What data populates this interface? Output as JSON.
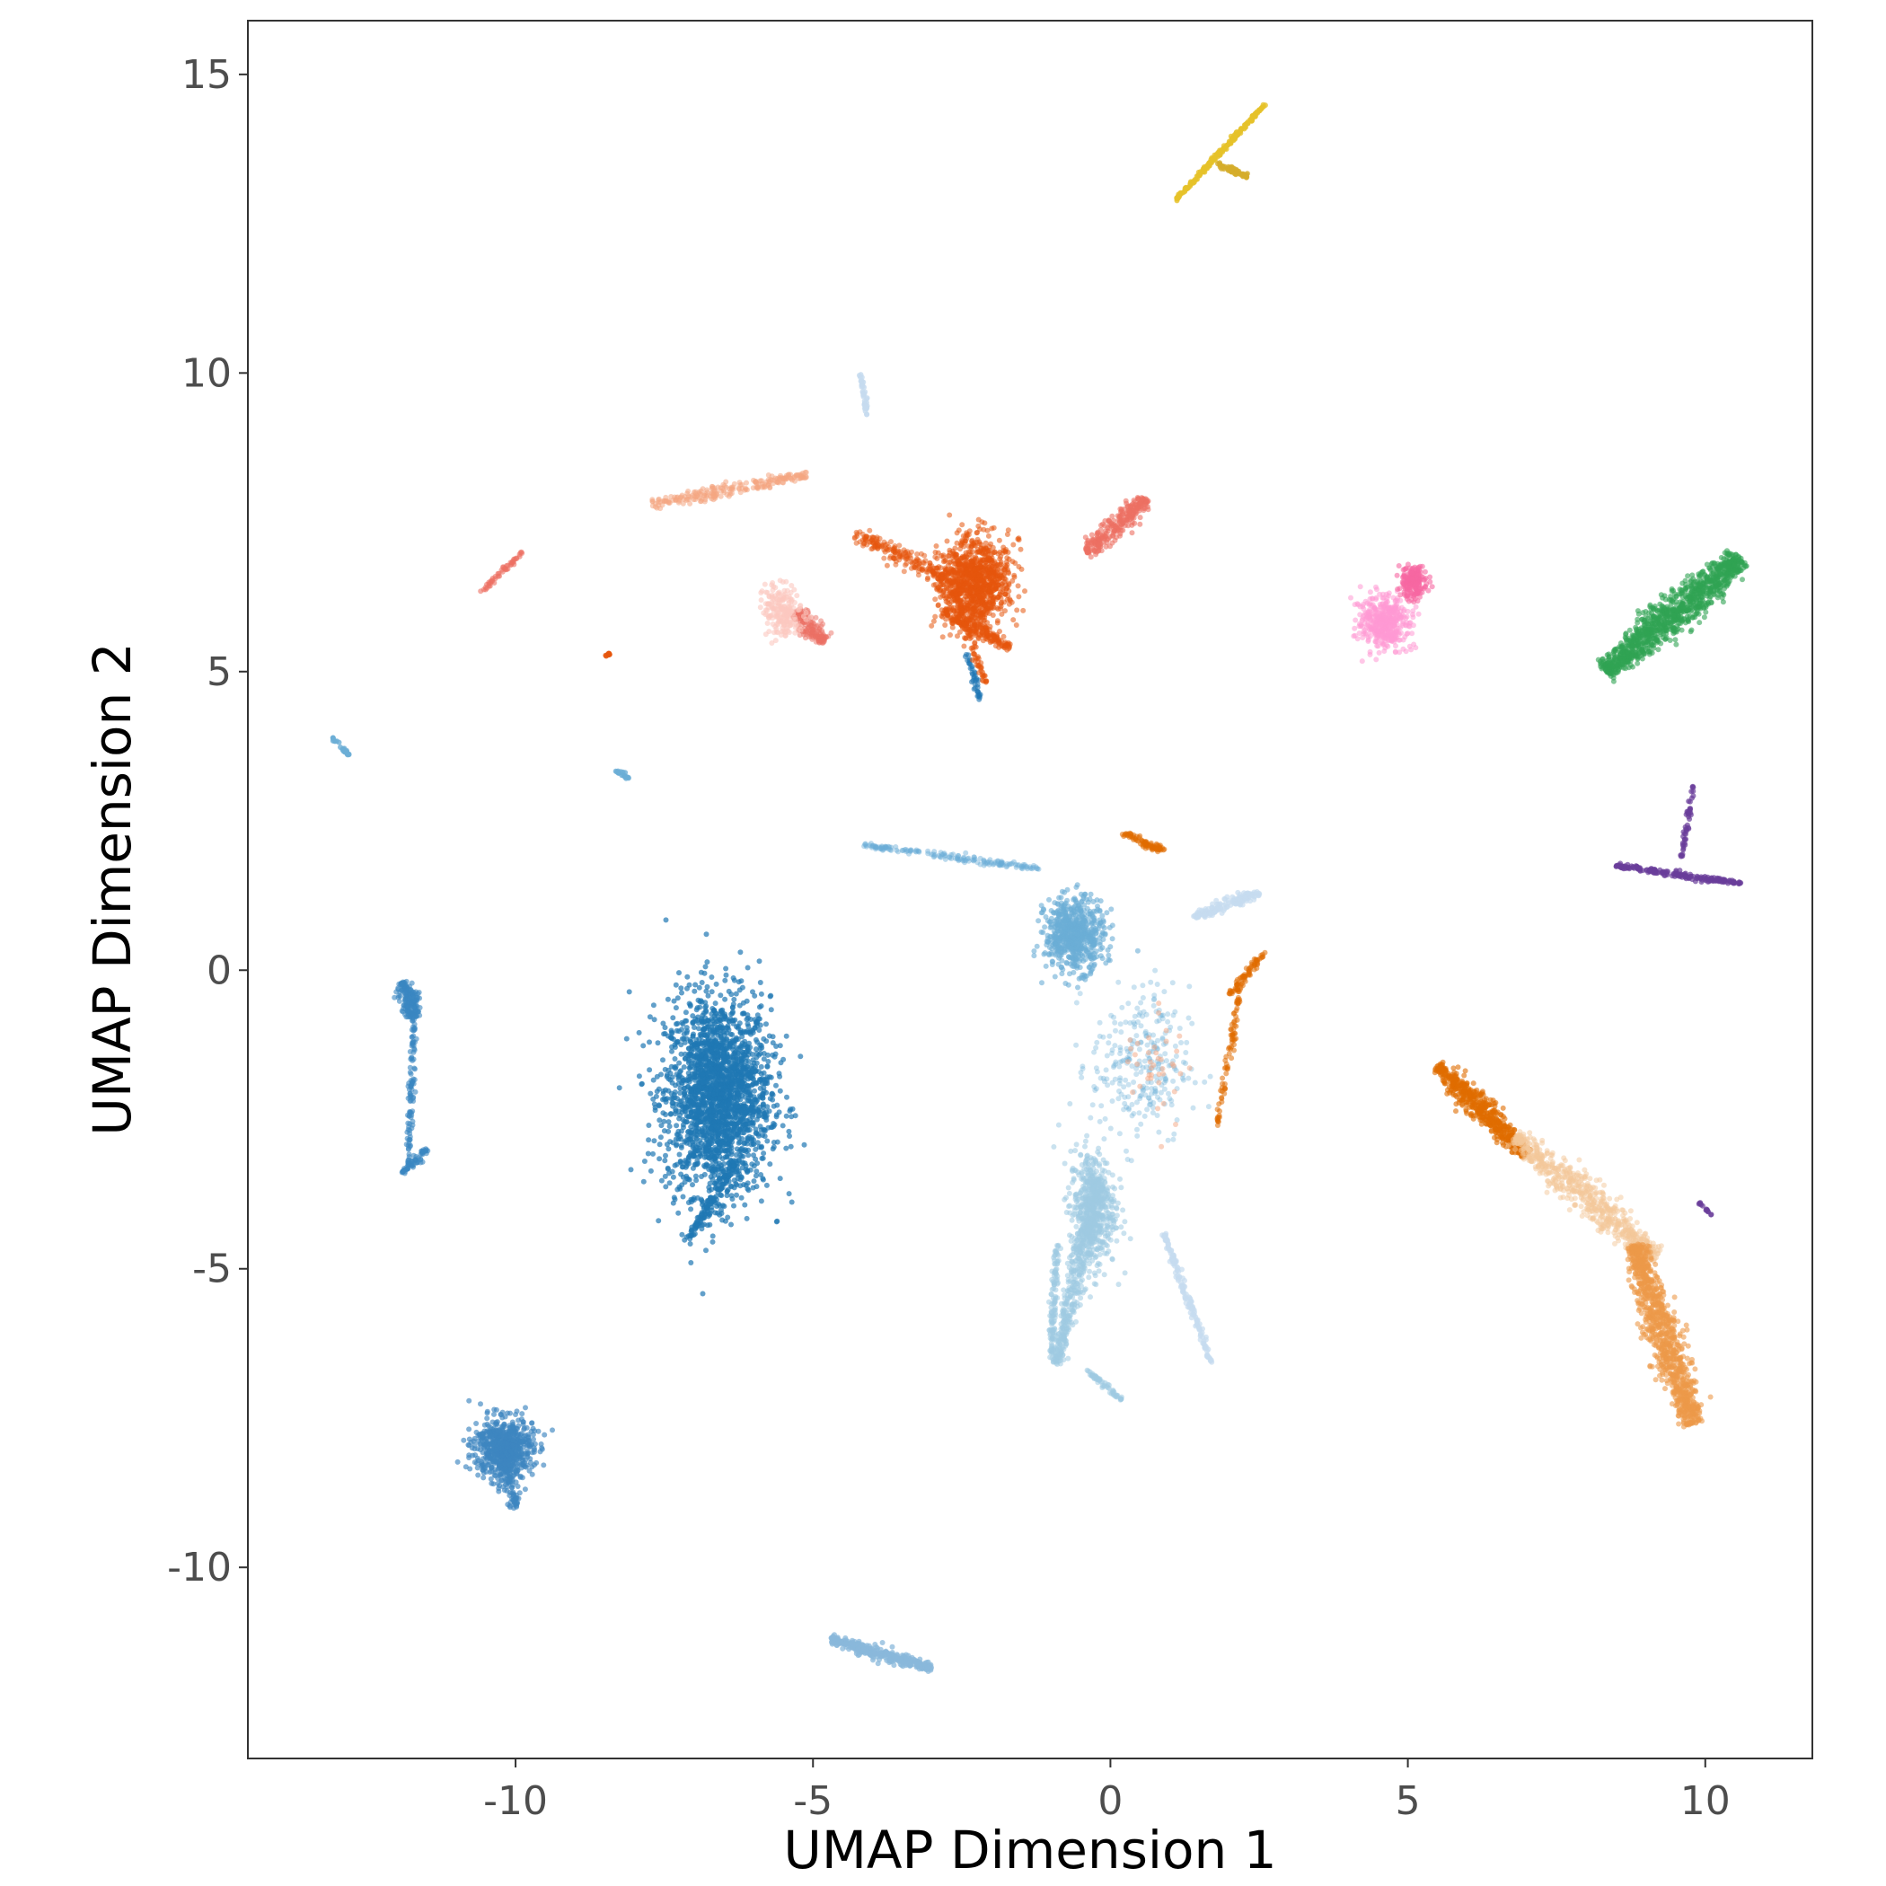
{
  "chart_data": {
    "type": "scatter",
    "title": "",
    "xlabel": "UMAP Dimension 1",
    "ylabel": "UMAP Dimension 2",
    "xlim": [
      -14.5,
      11.8
    ],
    "ylim": [
      -13.2,
      15.9
    ],
    "xticks": [
      -10,
      -5,
      0,
      5,
      10
    ],
    "yticks": [
      -10,
      -5,
      0,
      5,
      10,
      15
    ],
    "xtick_labels": [
      "-10",
      "-5",
      "0",
      "5",
      "10"
    ],
    "ytick_labels": [
      "-10",
      "-5",
      "0",
      "5",
      "10",
      "15"
    ],
    "grid": false,
    "legend": "none",
    "clusters": [
      {
        "color": "#1f77b4",
        "alpha": 0.7,
        "kind": "blob",
        "center": [
          -6.6,
          -2.1
        ],
        "spread": [
          0.8,
          1.5
        ],
        "count": 2200
      },
      {
        "color": "#1f77b4",
        "alpha": 0.7,
        "kind": "line",
        "from": [
          -6.3,
          -3.2
        ],
        "to": [
          -7.1,
          -4.5
        ],
        "width": 0.12,
        "count": 140
      },
      {
        "color": "#3a87c2",
        "alpha": 0.6,
        "kind": "line",
        "from": [
          -11.9,
          -0.2
        ],
        "to": [
          -11.7,
          -0.8
        ],
        "width": 0.2,
        "count": 180
      },
      {
        "color": "#3a87c2",
        "alpha": 0.6,
        "kind": "line",
        "from": [
          -11.7,
          -0.6
        ],
        "to": [
          -11.8,
          -3.3
        ],
        "width": 0.06,
        "count": 110
      },
      {
        "color": "#3a87c2",
        "alpha": 0.6,
        "kind": "line",
        "from": [
          -11.5,
          -3.0
        ],
        "to": [
          -11.9,
          -3.4
        ],
        "width": 0.08,
        "count": 60
      },
      {
        "color": "#3d85c0",
        "alpha": 0.65,
        "kind": "blob",
        "center": [
          -10.2,
          -8.0
        ],
        "spread": [
          0.45,
          0.45
        ],
        "count": 650
      },
      {
        "color": "#3d85c0",
        "alpha": 0.65,
        "kind": "line",
        "from": [
          -10.2,
          -8.2
        ],
        "to": [
          -10.0,
          -9.0
        ],
        "width": 0.15,
        "count": 90
      },
      {
        "color": "#6baed6",
        "alpha": 0.6,
        "kind": "blob",
        "center": [
          -0.6,
          0.6
        ],
        "spread": [
          0.45,
          0.55
        ],
        "count": 650
      },
      {
        "color": "#6baed6",
        "alpha": 0.45,
        "kind": "line",
        "from": [
          -4.2,
          2.1
        ],
        "to": [
          -1.2,
          1.7
        ],
        "width": 0.07,
        "count": 170
      },
      {
        "color": "#6baed6",
        "alpha": 0.35,
        "kind": "blob",
        "center": [
          0.5,
          -1.6
        ],
        "spread": [
          0.75,
          1.2
        ],
        "count": 280
      },
      {
        "color": "#9ecae1",
        "alpha": 0.55,
        "kind": "blob",
        "center": [
          -0.3,
          -4.0
        ],
        "spread": [
          0.35,
          0.9
        ],
        "count": 550
      },
      {
        "color": "#9ecae1",
        "alpha": 0.55,
        "kind": "line",
        "from": [
          -0.2,
          -3.5
        ],
        "to": [
          -0.9,
          -6.6
        ],
        "width": 0.18,
        "count": 420
      },
      {
        "color": "#9ecae1",
        "alpha": 0.55,
        "kind": "line",
        "from": [
          -0.9,
          -4.6
        ],
        "to": [
          -1.0,
          -6.5
        ],
        "width": 0.07,
        "count": 120
      },
      {
        "color": "#9ecae1",
        "alpha": 0.55,
        "kind": "line",
        "from": [
          -0.4,
          -6.7
        ],
        "to": [
          0.2,
          -7.2
        ],
        "width": 0.05,
        "count": 60
      },
      {
        "color": "#c6dbef",
        "alpha": 0.7,
        "kind": "line",
        "from": [
          0.9,
          -4.4
        ],
        "to": [
          1.7,
          -6.6
        ],
        "width": 0.07,
        "count": 160
      },
      {
        "color": "#c6dbef",
        "alpha": 0.7,
        "kind": "line",
        "from": [
          1.4,
          0.9
        ],
        "to": [
          2.5,
          1.3
        ],
        "width": 0.12,
        "count": 160
      },
      {
        "color": "#8ab8db",
        "alpha": 0.75,
        "kind": "line",
        "from": [
          -4.7,
          -11.2
        ],
        "to": [
          -3.0,
          -11.7
        ],
        "width": 0.12,
        "count": 320
      },
      {
        "color": "#c6dbef",
        "alpha": 0.8,
        "kind": "line",
        "from": [
          -4.2,
          10.0
        ],
        "to": [
          -4.1,
          9.3
        ],
        "width": 0.04,
        "count": 40
      },
      {
        "color": "#1f77b4",
        "alpha": 0.6,
        "kind": "line",
        "from": [
          -2.4,
          5.3
        ],
        "to": [
          -2.2,
          4.5
        ],
        "width": 0.06,
        "count": 40
      },
      {
        "color": "#6baed6",
        "alpha": 0.8,
        "kind": "line",
        "from": [
          -13.1,
          3.9
        ],
        "to": [
          -12.8,
          3.6
        ],
        "width": 0.04,
        "count": 25
      },
      {
        "color": "#6baed6",
        "alpha": 0.8,
        "kind": "line",
        "from": [
          -8.3,
          3.35
        ],
        "to": [
          -8.1,
          3.2
        ],
        "width": 0.04,
        "count": 20
      },
      {
        "color": "#e6550d",
        "alpha": 0.55,
        "kind": "blob",
        "center": [
          -2.3,
          6.5
        ],
        "spread": [
          0.55,
          0.65
        ],
        "count": 1100
      },
      {
        "color": "#e6550d",
        "alpha": 0.55,
        "kind": "line",
        "from": [
          -2.8,
          6.0
        ],
        "to": [
          -1.7,
          5.4
        ],
        "width": 0.15,
        "count": 160
      },
      {
        "color": "#e6550d",
        "alpha": 0.55,
        "kind": "line",
        "from": [
          -2.6,
          6.3
        ],
        "to": [
          -2.1,
          4.8
        ],
        "width": 0.08,
        "count": 80
      },
      {
        "color": "#e6550d",
        "alpha": 0.5,
        "kind": "line",
        "from": [
          -4.3,
          7.3
        ],
        "to": [
          -2.8,
          6.6
        ],
        "width": 0.18,
        "count": 180
      },
      {
        "color": "#ec7063",
        "alpha": 0.6,
        "kind": "line",
        "from": [
          -0.4,
          7.0
        ],
        "to": [
          0.6,
          7.9
        ],
        "width": 0.22,
        "count": 260
      },
      {
        "color": "#ec7063",
        "alpha": 0.5,
        "kind": "line",
        "from": [
          -5.3,
          6.0
        ],
        "to": [
          -4.8,
          5.5
        ],
        "width": 0.2,
        "count": 160
      },
      {
        "color": "#ec7063",
        "alpha": 0.6,
        "kind": "line",
        "from": [
          -10.6,
          6.3
        ],
        "to": [
          -9.9,
          7.0
        ],
        "width": 0.05,
        "count": 50
      },
      {
        "color": "#f4a582",
        "alpha": 0.55,
        "kind": "line",
        "from": [
          -7.7,
          7.8
        ],
        "to": [
          -5.1,
          8.3
        ],
        "width": 0.13,
        "count": 220
      },
      {
        "color": "#fbc8c0",
        "alpha": 0.6,
        "kind": "blob",
        "center": [
          -5.5,
          6.0
        ],
        "spread": [
          0.3,
          0.4
        ],
        "count": 200
      },
      {
        "color": "#e6550d",
        "alpha": 0.8,
        "kind": "line",
        "from": [
          -8.5,
          5.25
        ],
        "to": [
          -8.4,
          5.3
        ],
        "width": 0.02,
        "count": 10
      },
      {
        "color": "#e6c229",
        "alpha": 0.8,
        "kind": "line",
        "from": [
          1.1,
          12.9
        ],
        "to": [
          2.6,
          14.5
        ],
        "width": 0.04,
        "count": 200
      },
      {
        "color": "#d4ac2a",
        "alpha": 0.8,
        "kind": "line",
        "from": [
          1.8,
          13.5
        ],
        "to": [
          2.3,
          13.3
        ],
        "width": 0.06,
        "count": 60
      },
      {
        "color": "#ff99d4",
        "alpha": 0.55,
        "kind": "blob",
        "center": [
          4.6,
          5.8
        ],
        "spread": [
          0.35,
          0.4
        ],
        "count": 450
      },
      {
        "color": "#f768a1",
        "alpha": 0.6,
        "kind": "blob",
        "center": [
          5.1,
          6.5
        ],
        "spread": [
          0.2,
          0.25
        ],
        "count": 200
      },
      {
        "color": "#31a354",
        "alpha": 0.6,
        "kind": "line",
        "from": [
          8.3,
          5.0
        ],
        "to": [
          10.6,
          6.9
        ],
        "width": 0.35,
        "count": 1100
      },
      {
        "color": "#6a3d9a",
        "alpha": 0.7,
        "kind": "line",
        "from": [
          8.5,
          1.75
        ],
        "to": [
          10.6,
          1.45
        ],
        "width": 0.06,
        "count": 200
      },
      {
        "color": "#6a3d9a",
        "alpha": 0.7,
        "kind": "line",
        "from": [
          9.8,
          3.1
        ],
        "to": [
          9.6,
          1.9
        ],
        "width": 0.05,
        "count": 50
      },
      {
        "color": "#6a3d9a",
        "alpha": 0.7,
        "kind": "line",
        "from": [
          9.9,
          -3.9
        ],
        "to": [
          10.1,
          -4.1
        ],
        "width": 0.03,
        "count": 15
      },
      {
        "color": "#e06c00",
        "alpha": 0.6,
        "kind": "line",
        "from": [
          5.5,
          -1.6
        ],
        "to": [
          7.0,
          -3.1
        ],
        "width": 0.22,
        "count": 550
      },
      {
        "color": "#f4c89a",
        "alpha": 0.5,
        "kind": "line",
        "from": [
          6.8,
          -2.8
        ],
        "to": [
          9.2,
          -4.8
        ],
        "width": 0.3,
        "count": 650
      },
      {
        "color": "#ec9a4a",
        "alpha": 0.6,
        "kind": "line",
        "from": [
          8.8,
          -4.6
        ],
        "to": [
          9.8,
          -7.6
        ],
        "width": 0.32,
        "count": 950
      },
      {
        "color": "#e06c00",
        "alpha": 0.55,
        "kind": "line",
        "from": [
          0.2,
          2.3
        ],
        "to": [
          0.9,
          2.0
        ],
        "width": 0.08,
        "count": 80
      },
      {
        "color": "#e06c00",
        "alpha": 0.55,
        "kind": "line",
        "from": [
          2.0,
          -0.4
        ],
        "to": [
          2.6,
          0.3
        ],
        "width": 0.06,
        "count": 70
      },
      {
        "color": "#e06c00",
        "alpha": 0.55,
        "kind": "line",
        "from": [
          2.2,
          -0.2
        ],
        "to": [
          1.8,
          -2.6
        ],
        "width": 0.08,
        "count": 90
      },
      {
        "color": "#f4a582",
        "alpha": 0.5,
        "kind": "blob",
        "center": [
          0.8,
          -1.5
        ],
        "spread": [
          0.5,
          0.9
        ],
        "count": 40
      }
    ]
  }
}
